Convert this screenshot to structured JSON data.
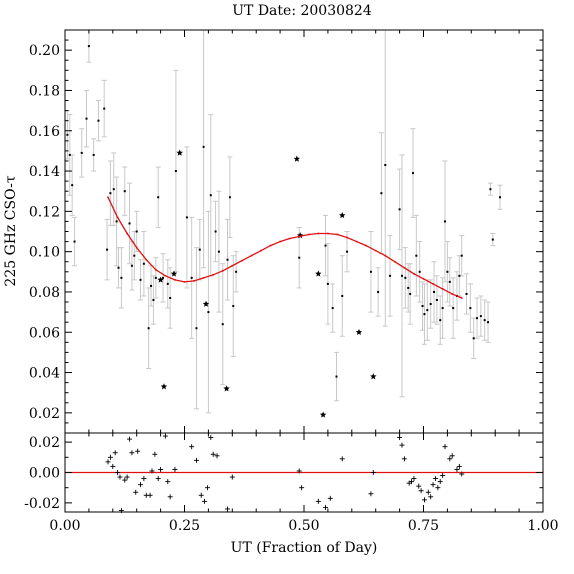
{
  "chart_data": {
    "type": "scatter",
    "title": "UT Date: 20030824",
    "xlabel": "UT (Fraction of Day)",
    "ylabel": "225 GHz CSO-τ",
    "xlim": [
      0.0,
      1.0
    ],
    "ylim": [
      0.01,
      0.21
    ],
    "residual_ylim": [
      -0.026,
      0.026
    ],
    "x_ticks": [
      "0.00",
      "0.25",
      "0.50",
      "0.75",
      "1.00"
    ],
    "y_ticks": [
      "0.02",
      "0.04",
      "0.06",
      "0.08",
      "0.10",
      "0.12",
      "0.14",
      "0.16",
      "0.18",
      "0.20"
    ],
    "residual_ticks": [
      "0.02",
      "0.00",
      "-0.02"
    ],
    "grid": false,
    "colors": {
      "fit": "#e01010",
      "error_bar": "#c8c8c8",
      "points": "#000000"
    },
    "points": [
      {
        "x": 0.005,
        "y": 0.158,
        "err": 0.012
      },
      {
        "x": 0.01,
        "y": 0.148,
        "err": 0.02
      },
      {
        "x": 0.015,
        "y": 0.133,
        "err": 0.015
      },
      {
        "x": 0.02,
        "y": 0.105,
        "err": 0.012
      },
      {
        "x": 0.035,
        "y": 0.149,
        "err": 0.012
      },
      {
        "x": 0.045,
        "y": 0.166,
        "err": 0.014
      },
      {
        "x": 0.05,
        "y": 0.202,
        "err": 0.008
      },
      {
        "x": 0.06,
        "y": 0.148,
        "err": 0.008
      },
      {
        "x": 0.07,
        "y": 0.165,
        "err": 0.01
      },
      {
        "x": 0.082,
        "y": 0.171,
        "err": 0.014
      },
      {
        "x": 0.088,
        "y": 0.101,
        "err": 0.015
      },
      {
        "x": 0.095,
        "y": 0.129,
        "err": 0.016
      },
      {
        "x": 0.102,
        "y": 0.131,
        "err": 0.018
      },
      {
        "x": 0.108,
        "y": 0.115,
        "err": 0.022
      },
      {
        "x": 0.112,
        "y": 0.092,
        "err": 0.01
      },
      {
        "x": 0.118,
        "y": 0.087,
        "err": 0.015
      },
      {
        "x": 0.125,
        "y": 0.13,
        "err": 0.012
      },
      {
        "x": 0.135,
        "y": 0.114,
        "err": 0.02
      },
      {
        "x": 0.14,
        "y": 0.093,
        "err": 0.012
      },
      {
        "x": 0.145,
        "y": 0.098,
        "err": 0.012
      },
      {
        "x": 0.15,
        "y": 0.11,
        "err": 0.01
      },
      {
        "x": 0.158,
        "y": 0.086,
        "err": 0.01
      },
      {
        "x": 0.165,
        "y": 0.094,
        "err": 0.016
      },
      {
        "x": 0.175,
        "y": 0.062,
        "err": 0.02
      },
      {
        "x": 0.18,
        "y": 0.083,
        "err": 0.01
      },
      {
        "x": 0.185,
        "y": 0.076,
        "err": 0.012
      },
      {
        "x": 0.19,
        "y": 0.087,
        "err": 0.01
      },
      {
        "x": 0.195,
        "y": 0.127,
        "err": 0.015
      },
      {
        "x": 0.205,
        "y": 0.087,
        "err": 0.012
      },
      {
        "x": 0.215,
        "y": 0.084,
        "err": 0.012
      },
      {
        "x": 0.22,
        "y": 0.077,
        "err": 0.015
      },
      {
        "x": 0.232,
        "y": 0.14,
        "err": 0.05
      },
      {
        "x": 0.255,
        "y": 0.117,
        "err": 0.035
      },
      {
        "x": 0.265,
        "y": 0.087,
        "err": 0.03
      },
      {
        "x": 0.275,
        "y": 0.062,
        "err": 0.04
      },
      {
        "x": 0.282,
        "y": 0.101,
        "err": 0.015
      },
      {
        "x": 0.29,
        "y": 0.152,
        "err": 0.06
      },
      {
        "x": 0.3,
        "y": 0.07,
        "err": 0.05
      },
      {
        "x": 0.305,
        "y": 0.128,
        "err": 0.04
      },
      {
        "x": 0.315,
        "y": 0.11,
        "err": 0.015
      },
      {
        "x": 0.322,
        "y": 0.1,
        "err": 0.03
      },
      {
        "x": 0.33,
        "y": 0.064,
        "err": 0.03
      },
      {
        "x": 0.34,
        "y": 0.096,
        "err": 0.02
      },
      {
        "x": 0.345,
        "y": 0.127,
        "err": 0.02
      },
      {
        "x": 0.352,
        "y": 0.073,
        "err": 0.025
      },
      {
        "x": 0.358,
        "y": 0.09,
        "err": 0.01
      },
      {
        "x": 0.49,
        "y": 0.097,
        "err": 0.015
      },
      {
        "x": 0.545,
        "y": 0.103,
        "err": 0.015
      },
      {
        "x": 0.55,
        "y": 0.084,
        "err": 0.02
      },
      {
        "x": 0.56,
        "y": 0.072,
        "err": 0.012
      },
      {
        "x": 0.568,
        "y": 0.038,
        "err": 0.012
      },
      {
        "x": 0.58,
        "y": 0.078,
        "err": 0.02
      },
      {
        "x": 0.59,
        "y": 0.1,
        "err": 0.01
      },
      {
        "x": 0.64,
        "y": 0.09,
        "err": 0.02
      },
      {
        "x": 0.655,
        "y": 0.08,
        "err": 0.012
      },
      {
        "x": 0.662,
        "y": 0.129,
        "err": 0.03
      },
      {
        "x": 0.67,
        "y": 0.143,
        "err": 0.08
      },
      {
        "x": 0.68,
        "y": 0.088,
        "err": 0.02
      },
      {
        "x": 0.7,
        "y": 0.121,
        "err": 0.02
      },
      {
        "x": 0.705,
        "y": 0.088,
        "err": 0.06
      },
      {
        "x": 0.712,
        "y": 0.087,
        "err": 0.015
      },
      {
        "x": 0.718,
        "y": 0.082,
        "err": 0.012
      },
      {
        "x": 0.722,
        "y": 0.079,
        "err": 0.015
      },
      {
        "x": 0.728,
        "y": 0.139,
        "err": 0.022
      },
      {
        "x": 0.735,
        "y": 0.098,
        "err": 0.02
      },
      {
        "x": 0.742,
        "y": 0.09,
        "err": 0.015
      },
      {
        "x": 0.748,
        "y": 0.073,
        "err": 0.012
      },
      {
        "x": 0.752,
        "y": 0.069,
        "err": 0.015
      },
      {
        "x": 0.758,
        "y": 0.071,
        "err": 0.015
      },
      {
        "x": 0.765,
        "y": 0.074,
        "err": 0.012
      },
      {
        "x": 0.772,
        "y": 0.08,
        "err": 0.015
      },
      {
        "x": 0.778,
        "y": 0.076,
        "err": 0.012
      },
      {
        "x": 0.785,
        "y": 0.066,
        "err": 0.012
      },
      {
        "x": 0.79,
        "y": 0.072,
        "err": 0.015
      },
      {
        "x": 0.795,
        "y": 0.115,
        "err": 0.03
      },
      {
        "x": 0.8,
        "y": 0.09,
        "err": 0.015
      },
      {
        "x": 0.805,
        "y": 0.085,
        "err": 0.012
      },
      {
        "x": 0.812,
        "y": 0.072,
        "err": 0.015
      },
      {
        "x": 0.82,
        "y": 0.078,
        "err": 0.012
      },
      {
        "x": 0.825,
        "y": 0.088,
        "err": 0.01
      },
      {
        "x": 0.83,
        "y": 0.098,
        "err": 0.01
      },
      {
        "x": 0.84,
        "y": 0.079,
        "err": 0.01
      },
      {
        "x": 0.848,
        "y": 0.072,
        "err": 0.012
      },
      {
        "x": 0.855,
        "y": 0.057,
        "err": 0.01
      },
      {
        "x": 0.862,
        "y": 0.067,
        "err": 0.01
      },
      {
        "x": 0.87,
        "y": 0.068,
        "err": 0.01
      },
      {
        "x": 0.878,
        "y": 0.066,
        "err": 0.01
      },
      {
        "x": 0.885,
        "y": 0.065,
        "err": 0.01
      },
      {
        "x": 0.89,
        "y": 0.131,
        "err": 0.003
      },
      {
        "x": 0.895,
        "y": 0.106,
        "err": 0.003
      },
      {
        "x": 0.91,
        "y": 0.127,
        "err": 0.006
      }
    ],
    "excluded_points": [
      {
        "x": 0.2,
        "y": 0.086
      },
      {
        "x": 0.207,
        "y": 0.033
      },
      {
        "x": 0.228,
        "y": 0.089
      },
      {
        "x": 0.24,
        "y": 0.149
      },
      {
        "x": 0.295,
        "y": 0.074
      },
      {
        "x": 0.338,
        "y": 0.032
      },
      {
        "x": 0.485,
        "y": 0.146
      },
      {
        "x": 0.492,
        "y": 0.108
      },
      {
        "x": 0.53,
        "y": 0.089
      },
      {
        "x": 0.54,
        "y": 0.019
      },
      {
        "x": 0.58,
        "y": 0.118
      },
      {
        "x": 0.615,
        "y": 0.06
      },
      {
        "x": 0.645,
        "y": 0.038
      }
    ],
    "fit": {
      "x": [
        0.09,
        0.11,
        0.13,
        0.15,
        0.17,
        0.19,
        0.21,
        0.23,
        0.25,
        0.27,
        0.29,
        0.31,
        0.33,
        0.35,
        0.37,
        0.39,
        0.41,
        0.43,
        0.45,
        0.47,
        0.49,
        0.51,
        0.53,
        0.55,
        0.57,
        0.59,
        0.61,
        0.63,
        0.65,
        0.67,
        0.69,
        0.71,
        0.73,
        0.75,
        0.77,
        0.79,
        0.81,
        0.83
      ],
      "y": [
        0.127,
        0.117,
        0.109,
        0.102,
        0.096,
        0.091,
        0.088,
        0.086,
        0.085,
        0.0855,
        0.087,
        0.0885,
        0.0905,
        0.093,
        0.0955,
        0.098,
        0.1005,
        0.103,
        0.105,
        0.1065,
        0.1075,
        0.1085,
        0.109,
        0.109,
        0.1085,
        0.107,
        0.105,
        0.103,
        0.1005,
        0.098,
        0.095,
        0.092,
        0.089,
        0.0865,
        0.084,
        0.0815,
        0.079,
        0.077
      ]
    },
    "residuals": [
      {
        "x": 0.09,
        "y": 0.007
      },
      {
        "x": 0.095,
        "y": 0.01
      },
      {
        "x": 0.1,
        "y": 0.004
      },
      {
        "x": 0.105,
        "y": 0.013
      },
      {
        "x": 0.11,
        "y": 0.0
      },
      {
        "x": 0.115,
        "y": -0.003
      },
      {
        "x": 0.118,
        "y": -0.025
      },
      {
        "x": 0.125,
        "y": -0.005
      },
      {
        "x": 0.13,
        "y": -0.003
      },
      {
        "x": 0.135,
        "y": 0.022
      },
      {
        "x": 0.14,
        "y": 0.013
      },
      {
        "x": 0.148,
        "y": -0.013
      },
      {
        "x": 0.152,
        "y": 0.014
      },
      {
        "x": 0.158,
        "y": -0.008
      },
      {
        "x": 0.165,
        "y": -0.004
      },
      {
        "x": 0.17,
        "y": -0.015
      },
      {
        "x": 0.178,
        "y": -0.015
      },
      {
        "x": 0.182,
        "y": 0.001
      },
      {
        "x": 0.188,
        "y": 0.012
      },
      {
        "x": 0.195,
        "y": -0.004
      },
      {
        "x": 0.2,
        "y": 0.002
      },
      {
        "x": 0.21,
        "y": 0.024
      },
      {
        "x": 0.215,
        "y": -0.006
      },
      {
        "x": 0.22,
        "y": -0.016
      },
      {
        "x": 0.23,
        "y": 0.002
      },
      {
        "x": 0.265,
        "y": 0.017
      },
      {
        "x": 0.275,
        "y": 0.008
      },
      {
        "x": 0.285,
        "y": -0.015
      },
      {
        "x": 0.292,
        "y": -0.019
      },
      {
        "x": 0.298,
        "y": -0.01
      },
      {
        "x": 0.305,
        "y": 0.023
      },
      {
        "x": 0.31,
        "y": 0.012
      },
      {
        "x": 0.318,
        "y": 0.011
      },
      {
        "x": 0.34,
        "y": -0.024
      },
      {
        "x": 0.35,
        "y": -0.003
      },
      {
        "x": 0.49,
        "y": 0.001
      },
      {
        "x": 0.495,
        "y": -0.01
      },
      {
        "x": 0.53,
        "y": -0.019
      },
      {
        "x": 0.545,
        "y": -0.023
      },
      {
        "x": 0.555,
        "y": -0.017
      },
      {
        "x": 0.58,
        "y": 0.009
      },
      {
        "x": 0.64,
        "y": -0.014
      },
      {
        "x": 0.645,
        "y": 0.0
      },
      {
        "x": 0.7,
        "y": 0.023
      },
      {
        "x": 0.705,
        "y": 0.018
      },
      {
        "x": 0.71,
        "y": 0.009
      },
      {
        "x": 0.72,
        "y": -0.007
      },
      {
        "x": 0.725,
        "y": -0.006
      },
      {
        "x": 0.73,
        "y": -0.004
      },
      {
        "x": 0.74,
        "y": -0.009
      },
      {
        "x": 0.745,
        "y": -0.012
      },
      {
        "x": 0.752,
        "y": -0.018
      },
      {
        "x": 0.76,
        "y": -0.013
      },
      {
        "x": 0.765,
        "y": -0.016
      },
      {
        "x": 0.77,
        "y": -0.008
      },
      {
        "x": 0.775,
        "y": -0.004
      },
      {
        "x": 0.78,
        "y": -0.01
      },
      {
        "x": 0.785,
        "y": -0.006
      },
      {
        "x": 0.79,
        "y": -0.002
      },
      {
        "x": 0.795,
        "y": 0.017
      },
      {
        "x": 0.805,
        "y": 0.009
      },
      {
        "x": 0.81,
        "y": 0.011
      },
      {
        "x": 0.82,
        "y": 0.002
      },
      {
        "x": 0.825,
        "y": 0.004
      },
      {
        "x": 0.83,
        "y": -0.001
      }
    ]
  }
}
